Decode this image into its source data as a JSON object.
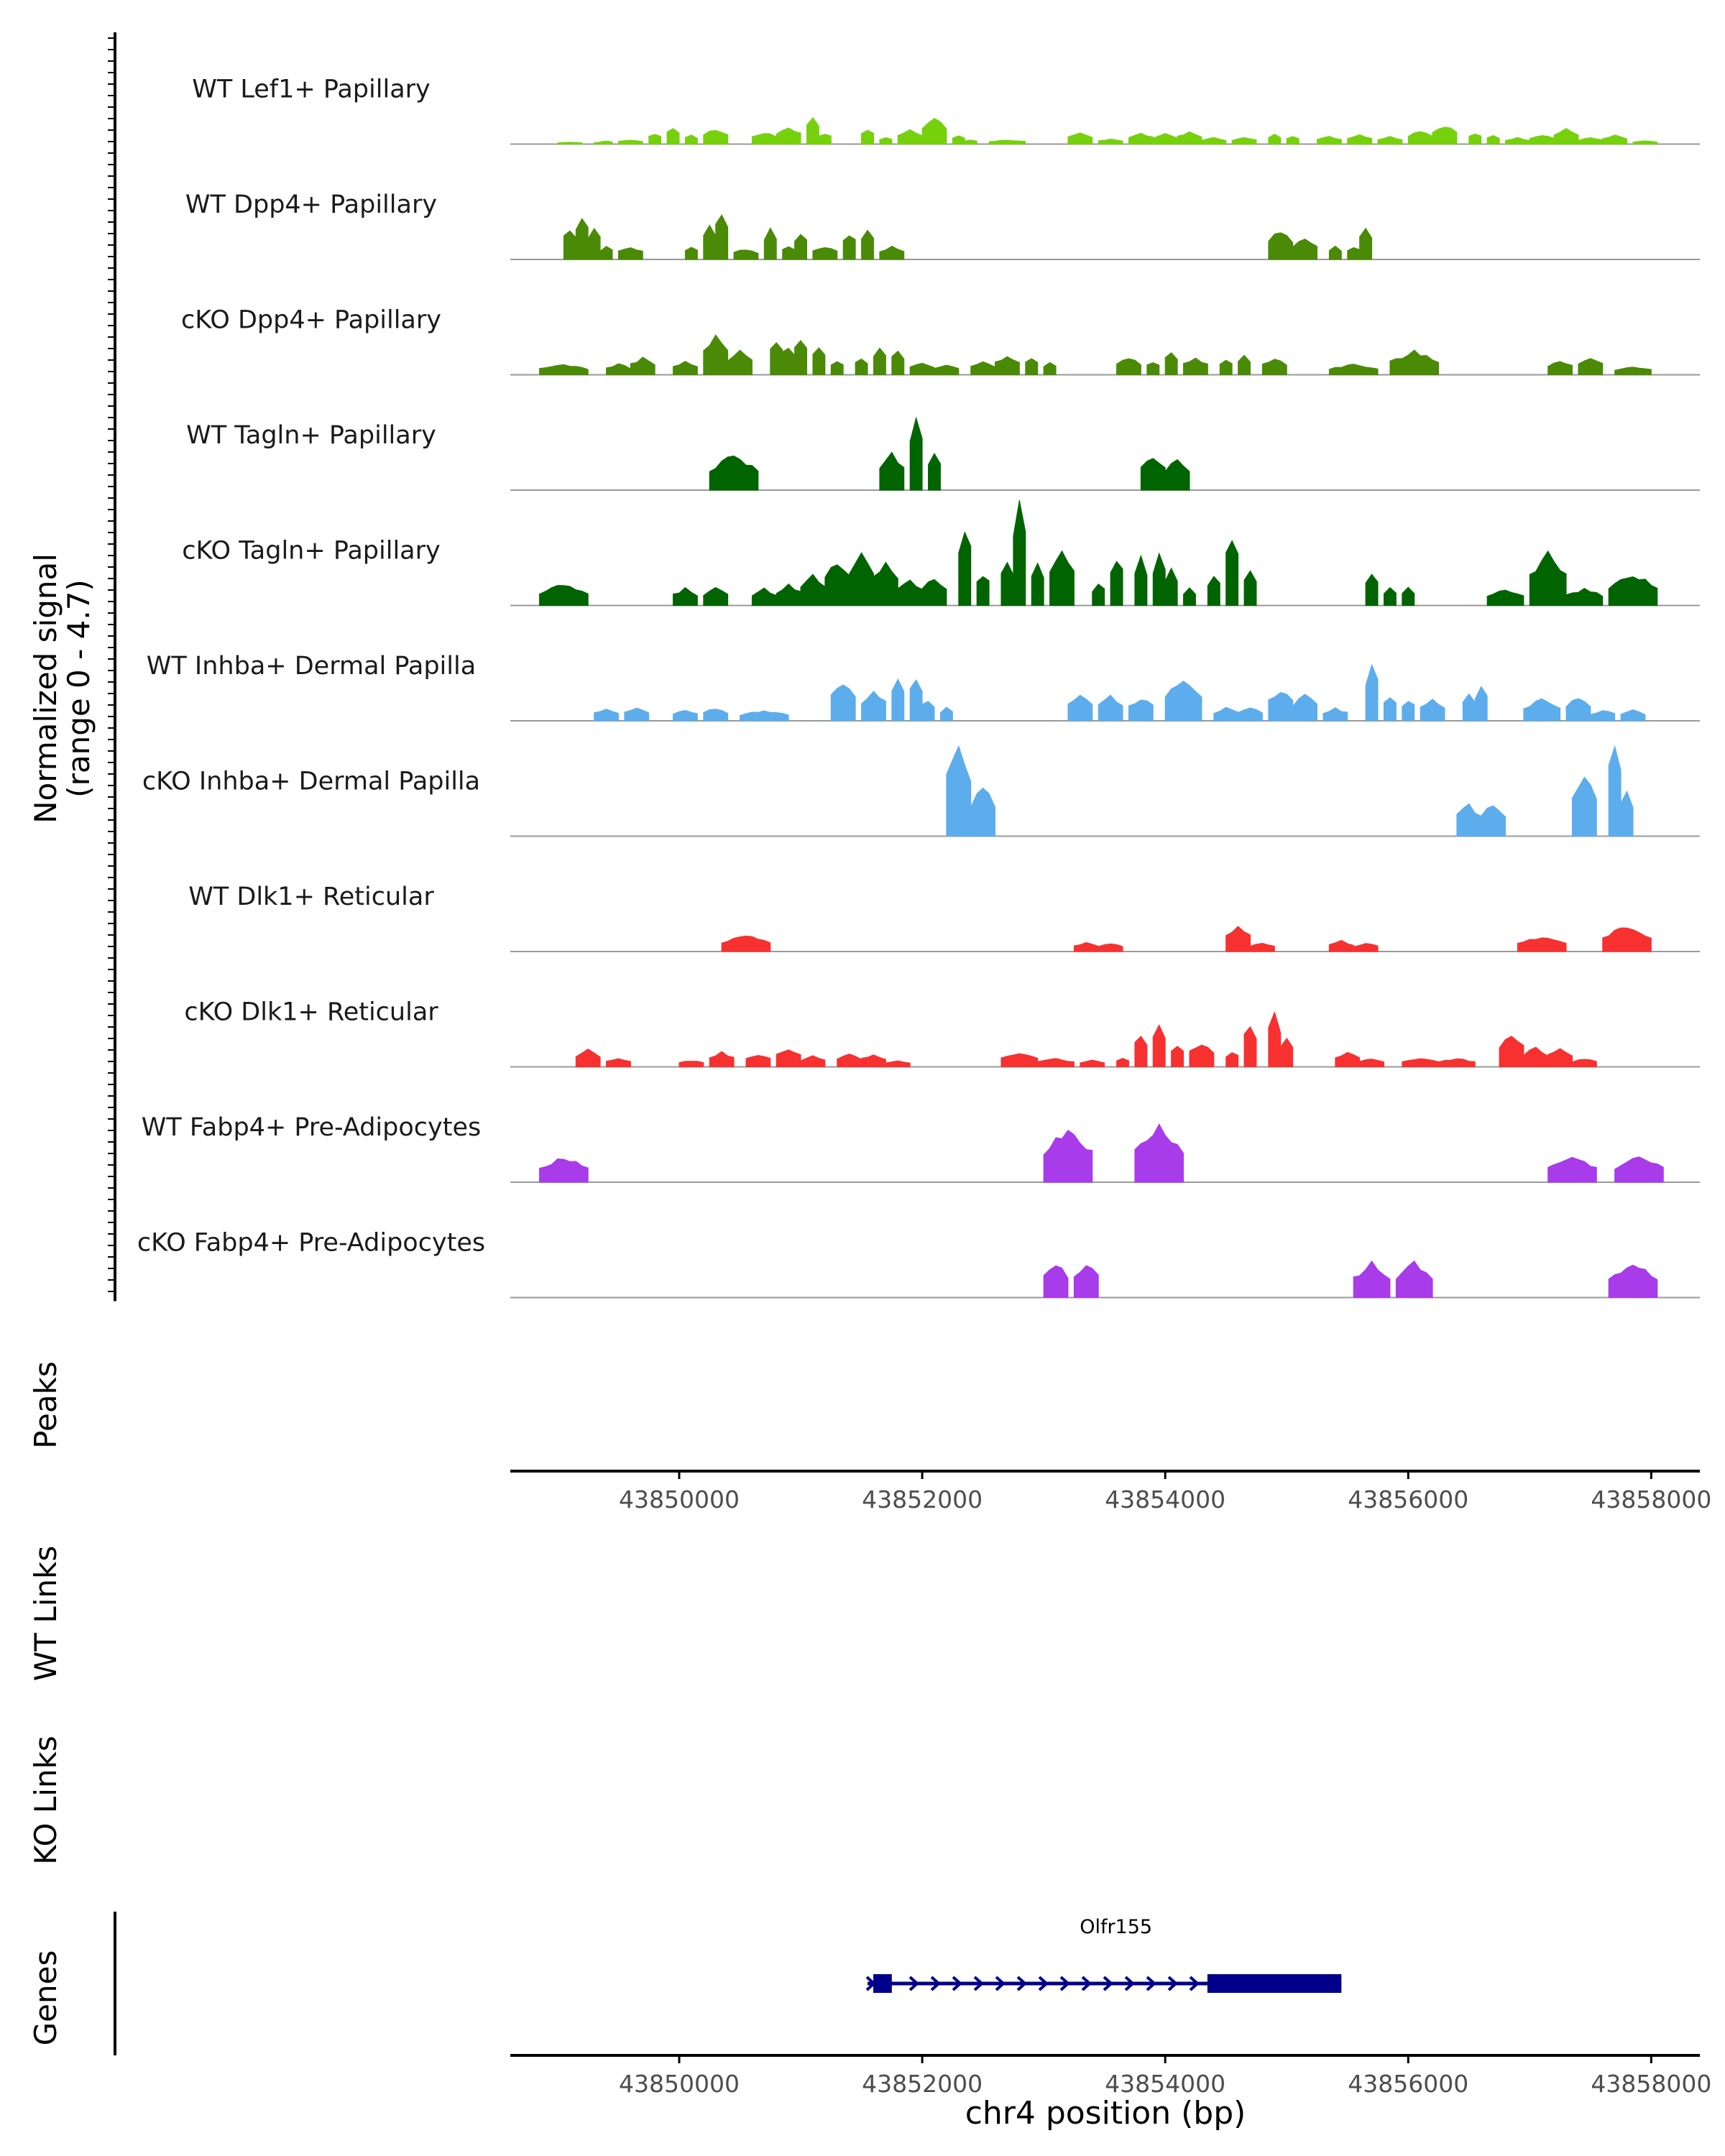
{
  "chart_data": {
    "type": "area",
    "title": "",
    "ylabel": [
      "Normalized signal",
      "(range 0 - 4.7)"
    ],
    "xlabel": "chr4 position (bp)",
    "ylim": [
      0,
      4.7
    ],
    "xlim": [
      43848610,
      43858400
    ],
    "x_ticks": [
      43850000,
      43852000,
      43854000,
      43856000,
      43858000
    ],
    "x_tick_labels": [
      "43850000",
      "43852000",
      "43854000",
      "43856000",
      "43858000"
    ],
    "track_labels": {
      "peaks": "Peaks",
      "wt_links": "WT Links",
      "ko_links": "KO Links",
      "genes": "Genes"
    },
    "tracks": [
      {
        "name": "WT Lef1+ Papillary",
        "color": "#76D10C",
        "profile": [
          [
            43849100,
            0.1
          ],
          [
            43849350,
            0.1
          ],
          [
            43849400,
            0.15
          ],
          [
            43849600,
            0.2
          ],
          [
            43849800,
            0.5
          ],
          [
            43849950,
            0.8
          ],
          [
            43850100,
            0.4
          ],
          [
            43850300,
            0.7
          ],
          [
            43850700,
            0.55
          ],
          [
            43850900,
            0.8
          ],
          [
            43851100,
            1.3
          ],
          [
            43851200,
            0.5
          ],
          [
            43851550,
            0.7
          ],
          [
            43851700,
            0.3
          ],
          [
            43851900,
            0.7
          ],
          [
            43852100,
            1.2
          ],
          [
            43852300,
            0.4
          ],
          [
            43852400,
            0.2
          ],
          [
            43852700,
            0.2
          ],
          [
            43853300,
            0.5
          ],
          [
            43853550,
            0.25
          ],
          [
            43853800,
            0.5
          ],
          [
            43854000,
            0.5
          ],
          [
            43854200,
            0.55
          ],
          [
            43854400,
            0.3
          ],
          [
            43854650,
            0.3
          ],
          [
            43854900,
            0.45
          ],
          [
            43855050,
            0.4
          ],
          [
            43855350,
            0.35
          ],
          [
            43855600,
            0.45
          ],
          [
            43855850,
            0.35
          ],
          [
            43856100,
            0.65
          ],
          [
            43856300,
            0.9
          ],
          [
            43856550,
            0.5
          ],
          [
            43856700,
            0.4
          ],
          [
            43856900,
            0.3
          ],
          [
            43857100,
            0.45
          ],
          [
            43857300,
            0.7
          ],
          [
            43857500,
            0.3
          ],
          [
            43857700,
            0.4
          ],
          [
            43857950,
            0.15
          ]
        ]
      },
      {
        "name": "WT Dpp4+ Papillary",
        "color": "#4A8A06",
        "profile": [
          [
            43849100,
            1.5
          ],
          [
            43849200,
            2.0
          ],
          [
            43849300,
            1.4
          ],
          [
            43849400,
            0.6
          ],
          [
            43849600,
            0.6
          ],
          [
            43850100,
            0.6
          ],
          [
            43850250,
            1.5
          ],
          [
            43850350,
            2.2
          ],
          [
            43850550,
            0.5
          ],
          [
            43850750,
            1.4
          ],
          [
            43850900,
            0.6
          ],
          [
            43851000,
            1.3
          ],
          [
            43851200,
            0.6
          ],
          [
            43851400,
            1.2
          ],
          [
            43851550,
            1.4
          ],
          [
            43851750,
            0.6
          ],
          [
            43854950,
            1.4
          ],
          [
            43855150,
            1.0
          ],
          [
            43855400,
            0.6
          ],
          [
            43855550,
            0.6
          ],
          [
            43855650,
            1.4
          ]
        ]
      },
      {
        "name": "cKO Dpp4+ Papillary",
        "color": "#4A8A06",
        "profile": [
          [
            43849050,
            0.5
          ],
          [
            43849500,
            0.5
          ],
          [
            43849700,
            0.8
          ],
          [
            43850050,
            0.6
          ],
          [
            43850300,
            1.8
          ],
          [
            43850500,
            1.1
          ],
          [
            43850800,
            1.7
          ],
          [
            43850900,
            1.4
          ],
          [
            43851000,
            1.8
          ],
          [
            43851150,
            1.3
          ],
          [
            43851300,
            0.6
          ],
          [
            43851500,
            0.8
          ],
          [
            43851650,
            1.3
          ],
          [
            43851800,
            1.1
          ],
          [
            43852000,
            0.6
          ],
          [
            43852200,
            0.5
          ],
          [
            43852500,
            0.6
          ],
          [
            43852700,
            0.9
          ],
          [
            43852900,
            0.8
          ],
          [
            43853050,
            0.6
          ],
          [
            43853700,
            0.8
          ],
          [
            43853900,
            0.6
          ],
          [
            43854050,
            1.1
          ],
          [
            43854250,
            0.8
          ],
          [
            43854500,
            0.7
          ],
          [
            43854650,
            0.9
          ],
          [
            43854900,
            0.8
          ],
          [
            43855550,
            0.5
          ],
          [
            43856050,
            1.1
          ],
          [
            43857250,
            0.7
          ],
          [
            43857500,
            0.8
          ],
          [
            43857850,
            0.4
          ]
        ]
      },
      {
        "name": "WT Tagln+ Papillary",
        "color": "#006400",
        "profile": [
          [
            43850450,
            1.7
          ],
          [
            43851750,
            1.7
          ],
          [
            43851950,
            3.2
          ],
          [
            43852100,
            1.6
          ],
          [
            43853900,
            1.6
          ],
          [
            43854100,
            1.5
          ]
        ]
      },
      {
        "name": "cKO Tagln+ Papillary",
        "color": "#006400",
        "profile": [
          [
            43849050,
            1.0
          ],
          [
            43850050,
            0.8
          ],
          [
            43850300,
            0.8
          ],
          [
            43850700,
            0.8
          ],
          [
            43850900,
            1.0
          ],
          [
            43851100,
            1.5
          ],
          [
            43851300,
            2.1
          ],
          [
            43851500,
            2.4
          ],
          [
            43851700,
            2.1
          ],
          [
            43851900,
            1.2
          ],
          [
            43852100,
            1.3
          ],
          [
            43852350,
            3.7
          ],
          [
            43852500,
            1.5
          ],
          [
            43852700,
            2.2
          ],
          [
            43852800,
            4.7
          ],
          [
            43852950,
            2.0
          ],
          [
            43853150,
            2.5
          ],
          [
            43853450,
            1.0
          ],
          [
            43853600,
            2.2
          ],
          [
            43853800,
            2.2
          ],
          [
            43853950,
            2.3
          ],
          [
            43854050,
            1.7
          ],
          [
            43854200,
            0.8
          ],
          [
            43854400,
            1.4
          ],
          [
            43854550,
            3.3
          ],
          [
            43854700,
            1.7
          ],
          [
            43855700,
            1.5
          ],
          [
            43855850,
            0.8
          ],
          [
            43856000,
            0.8
          ],
          [
            43856800,
            0.8
          ],
          [
            43857150,
            2.4
          ],
          [
            43857450,
            0.8
          ],
          [
            43857850,
            1.5
          ]
        ]
      },
      {
        "name": "WT Inhba+ Dermal Papilla",
        "color": "#5DADEC",
        "profile": [
          [
            43849400,
            0.6
          ],
          [
            43849650,
            0.6
          ],
          [
            43850050,
            0.5
          ],
          [
            43850300,
            0.6
          ],
          [
            43850700,
            0.5
          ],
          [
            43851350,
            1.8
          ],
          [
            43851600,
            1.4
          ],
          [
            43851800,
            2.1
          ],
          [
            43851950,
            2.0
          ],
          [
            43852050,
            1.0
          ],
          [
            43852200,
            0.6
          ],
          [
            43853300,
            1.3
          ],
          [
            43853550,
            1.2
          ],
          [
            43853800,
            1.1
          ],
          [
            43854150,
            2.1
          ],
          [
            43854500,
            0.6
          ],
          [
            43854700,
            0.6
          ],
          [
            43854950,
            1.5
          ],
          [
            43855150,
            1.2
          ],
          [
            43855400,
            0.6
          ],
          [
            43855700,
            2.5
          ],
          [
            43855850,
            1.2
          ],
          [
            43856000,
            1.0
          ],
          [
            43856200,
            1.0
          ],
          [
            43856500,
            1.3
          ],
          [
            43856600,
            1.6
          ],
          [
            43857100,
            1.0
          ],
          [
            43857400,
            1.1
          ],
          [
            43857600,
            0.5
          ],
          [
            43857850,
            0.5
          ]
        ]
      },
      {
        "name": "cKO Inhba+ Dermal Papilla",
        "color": "#5DADEC",
        "profile": [
          [
            43852300,
            4.4
          ],
          [
            43852500,
            2.3
          ],
          [
            43856500,
            1.5
          ],
          [
            43856700,
            1.5
          ],
          [
            43857450,
            2.8
          ],
          [
            43857700,
            4.3
          ],
          [
            43857800,
            2.0
          ]
        ]
      },
      {
        "name": "WT Dlk1+ Reticular",
        "color": "#F73030",
        "profile": [
          [
            43850550,
            0.8
          ],
          [
            43853350,
            0.4
          ],
          [
            43853550,
            0.4
          ],
          [
            43854600,
            1.2
          ],
          [
            43854800,
            0.4
          ],
          [
            43855450,
            0.5
          ],
          [
            43855650,
            0.4
          ],
          [
            43857100,
            0.7
          ],
          [
            43857800,
            1.2
          ]
        ]
      },
      {
        "name": "cKO Dlk1+ Reticular",
        "color": "#F73030",
        "profile": [
          [
            43849250,
            0.8
          ],
          [
            43849500,
            0.4
          ],
          [
            43850100,
            0.3
          ],
          [
            43850350,
            0.7
          ],
          [
            43850650,
            0.6
          ],
          [
            43850900,
            0.9
          ],
          [
            43851100,
            0.5
          ],
          [
            43851400,
            0.6
          ],
          [
            43851600,
            0.6
          ],
          [
            43851800,
            0.3
          ],
          [
            43852800,
            0.7
          ],
          [
            43853100,
            0.4
          ],
          [
            43853400,
            0.3
          ],
          [
            43853650,
            0.4
          ],
          [
            43853800,
            1.5
          ],
          [
            43853950,
            2.0
          ],
          [
            43854100,
            1.0
          ],
          [
            43854300,
            1.1
          ],
          [
            43854550,
            0.7
          ],
          [
            43854700,
            2.0
          ],
          [
            43854900,
            2.4
          ],
          [
            43855000,
            1.3
          ],
          [
            43855500,
            0.7
          ],
          [
            43855700,
            0.4
          ],
          [
            43856100,
            0.4
          ],
          [
            43856400,
            0.4
          ],
          [
            43856850,
            1.5
          ],
          [
            43857050,
            0.9
          ],
          [
            43857250,
            0.9
          ],
          [
            43857450,
            0.4
          ]
        ]
      },
      {
        "name": "WT Fabp4+ Pre-Adipocytes",
        "color": "#A83BEA",
        "profile": [
          [
            43849050,
            1.2
          ],
          [
            43853200,
            2.5
          ],
          [
            43853950,
            2.6
          ],
          [
            43857350,
            1.2
          ],
          [
            43857900,
            1.2
          ]
        ]
      },
      {
        "name": "cKO Fabp4+ Pre-Adipocytes",
        "color": "#A83BEA",
        "profile": [
          [
            43853100,
            1.6
          ],
          [
            43853350,
            1.6
          ],
          [
            43855700,
            1.6
          ],
          [
            43856050,
            1.6
          ],
          [
            43857850,
            1.6
          ]
        ]
      }
    ],
    "genes": [
      {
        "name": "Olfr155",
        "color": "#00008B",
        "strand": "+",
        "start": 43851550,
        "end": 43855450,
        "exons": [
          [
            43851550,
            43851750
          ],
          [
            43854300,
            43855450
          ]
        ]
      }
    ]
  }
}
